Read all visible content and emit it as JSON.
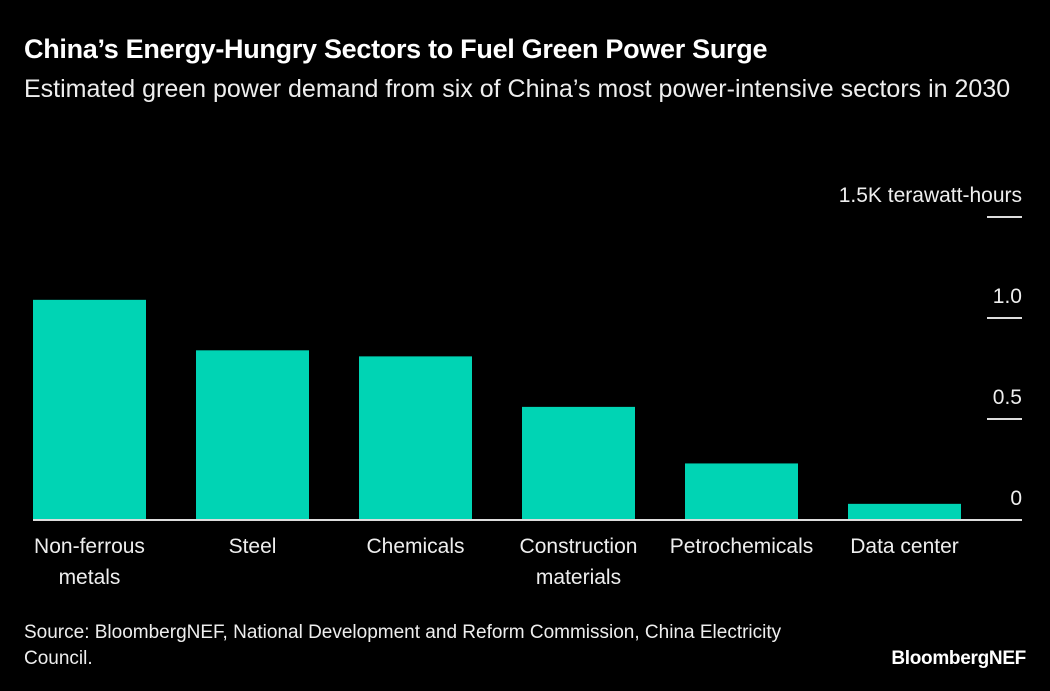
{
  "chart_data": {
    "type": "bar",
    "title": "China’s Energy-Hungry Sectors to Fuel Green Power Surge",
    "subtitle": "Estimated green power demand from six of China’s most power-intensive sectors in 2030",
    "categories": [
      "Non-ferrous metals",
      "Steel",
      "Chemicals",
      "Construction materials",
      "Petrochemicals",
      "Data center"
    ],
    "category_lines": [
      [
        "Non-ferrous",
        "metals"
      ],
      [
        "Steel"
      ],
      [
        "Chemicals"
      ],
      [
        "Construction",
        "materials"
      ],
      [
        "Petrochemicals"
      ],
      [
        "Data center"
      ]
    ],
    "values": [
      1.09,
      0.84,
      0.81,
      0.56,
      0.28,
      0.08
    ],
    "unit": "thousand terawatt-hours",
    "ylim": [
      0,
      1.5
    ],
    "yticks": [
      0,
      0.5,
      1.0,
      1.5
    ],
    "ytick_labels": [
      "0",
      "0.5",
      "1.0",
      "1.5K terawatt-hours"
    ],
    "grid": false,
    "bar_color": "#00d4b4"
  },
  "footer": {
    "source": "Source: BloombergNEF, National Development and Reform Commission, China Electricity Council.",
    "logo": "BloombergNEF"
  }
}
